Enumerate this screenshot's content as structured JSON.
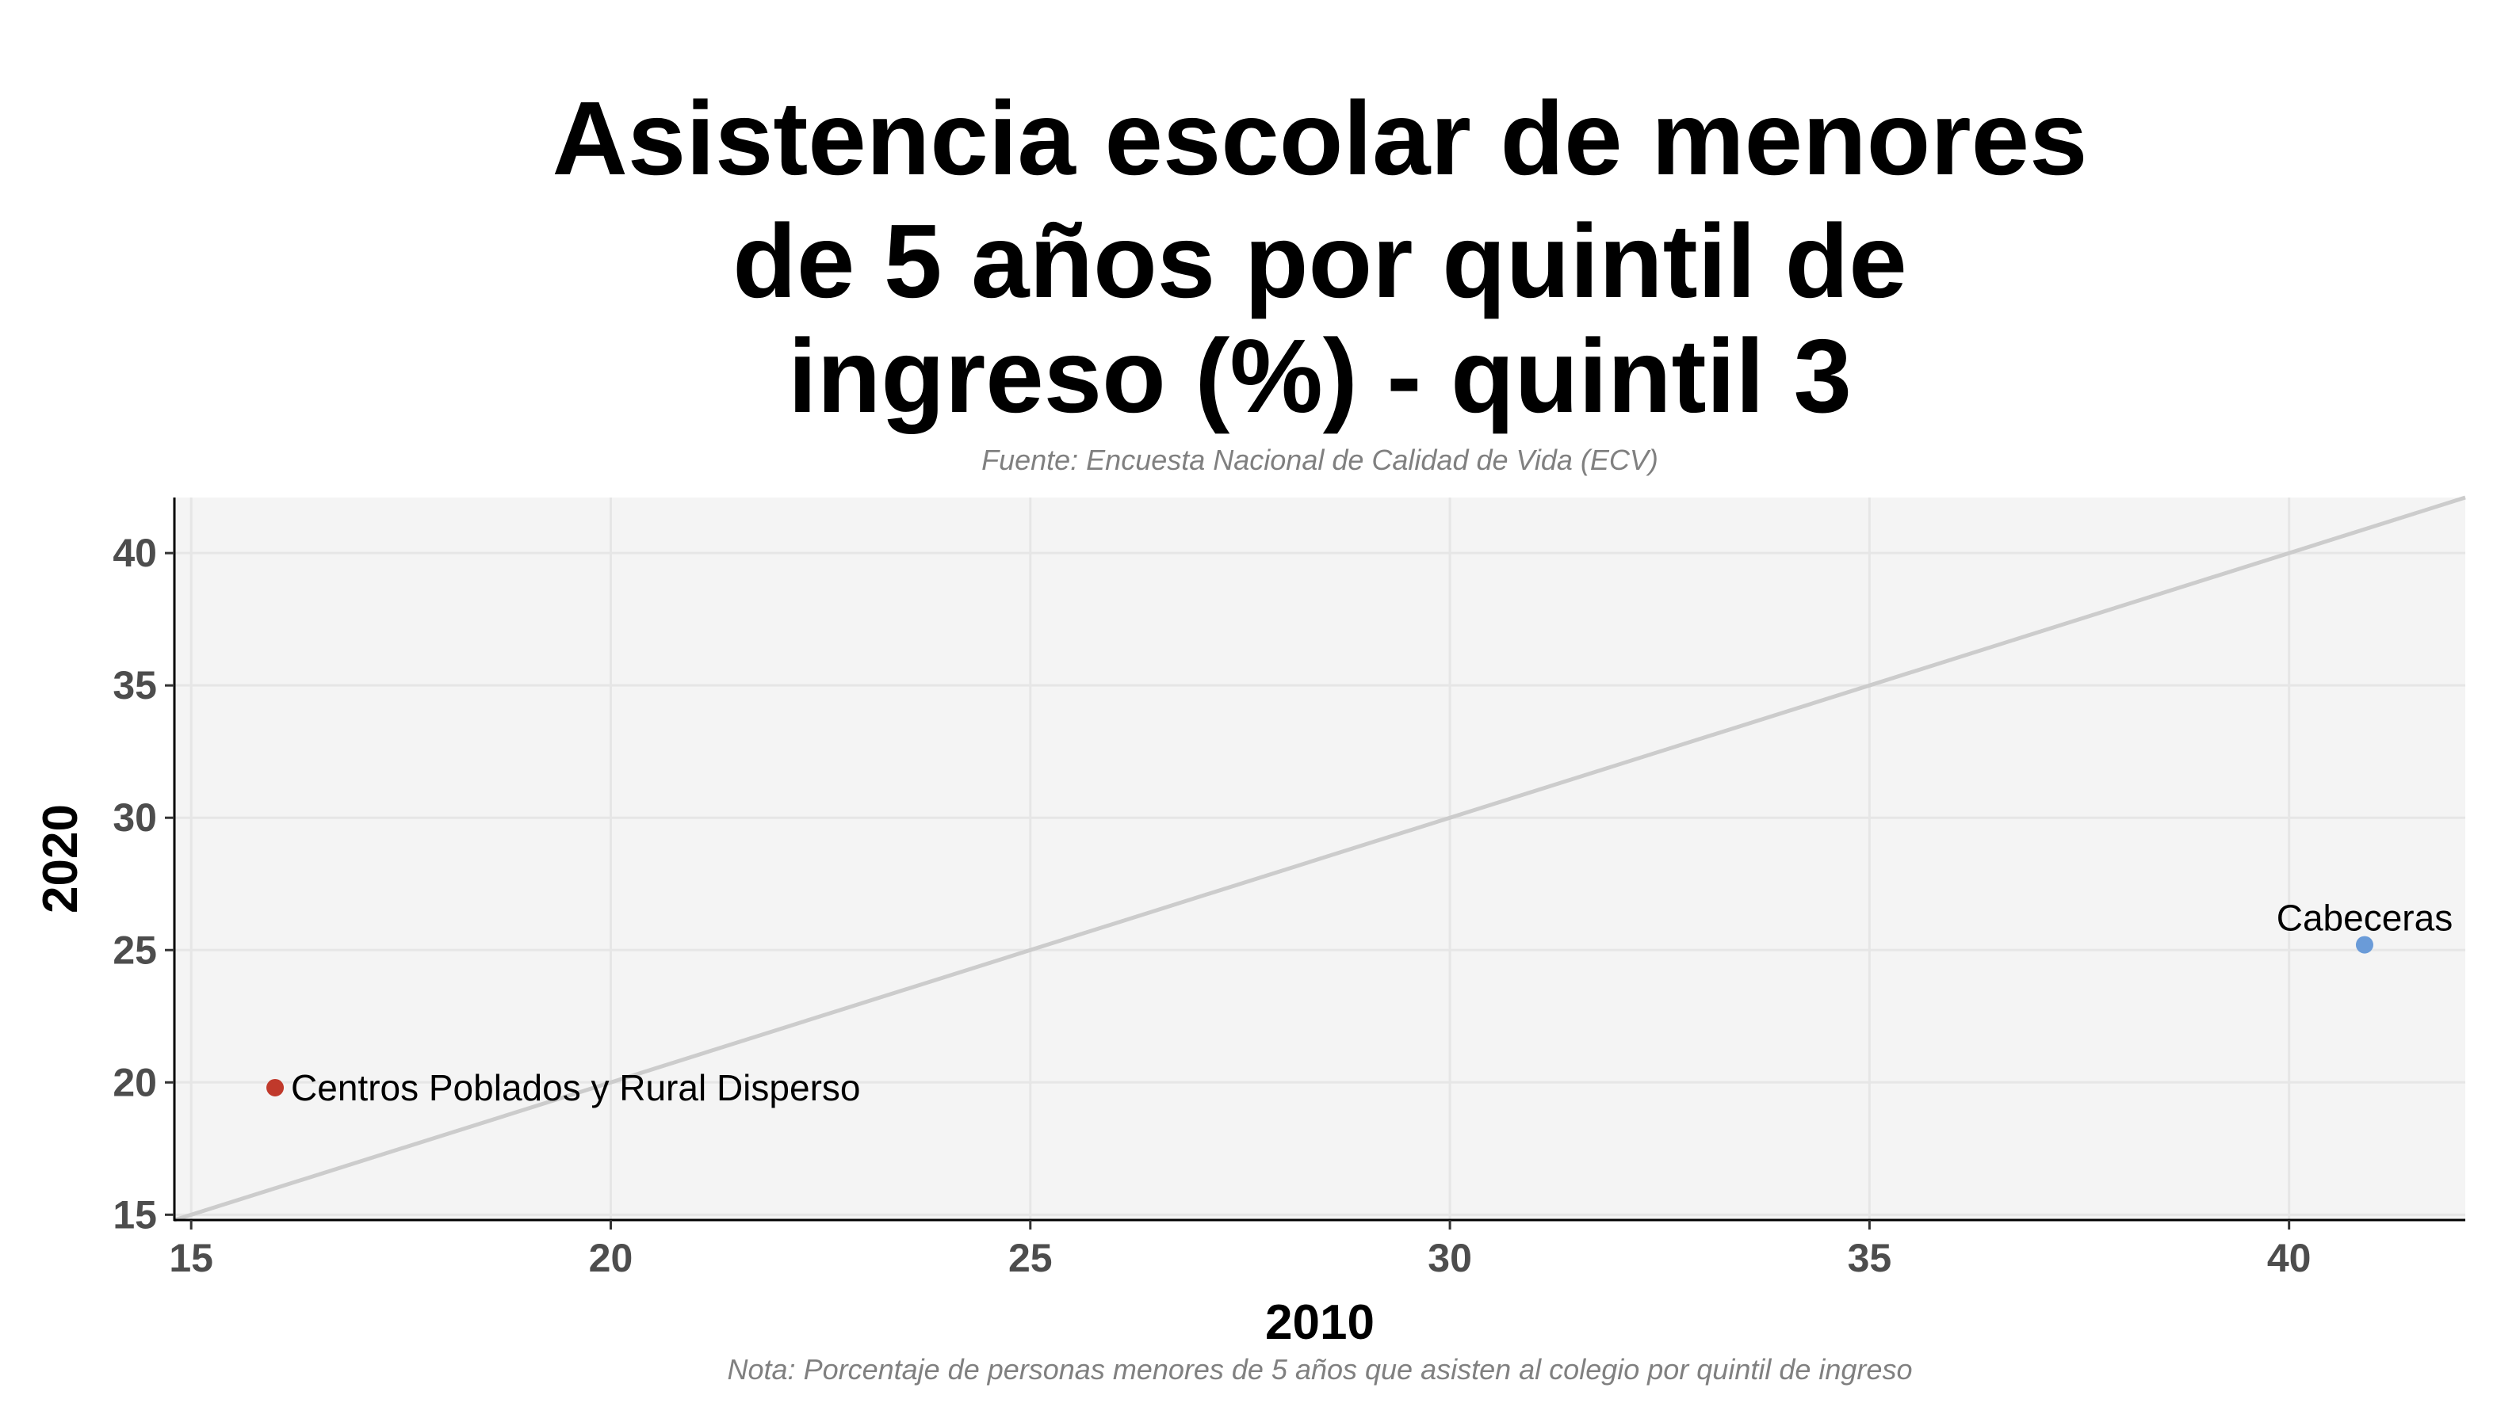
{
  "chart_data": {
    "type": "scatter",
    "title_lines": [
      "Asistencia escolar de menores",
      "de 5 años por quintil de",
      "ingreso (%) - quintil 3"
    ],
    "subtitle": "Fuente: Encuesta Nacional de Calidad de Vida (ECV)",
    "caption": "Nota: Porcentaje de personas menores de 5 años que asisten al colegio por quintil de ingreso",
    "xlabel": "2010",
    "ylabel": "2020",
    "xlim": [
      14.8,
      42.1
    ],
    "ylim": [
      14.8,
      42.1
    ],
    "x_ticks": [
      15,
      20,
      25,
      30,
      35,
      40
    ],
    "y_ticks": [
      15,
      20,
      25,
      30,
      35,
      40
    ],
    "reference_line": "y = x",
    "grid": true,
    "legend": "none",
    "points": [
      {
        "label": "Centros Poblados y Rural Disperso",
        "x": 16.0,
        "y": 19.8,
        "color": "#c0392b"
      },
      {
        "label": "Cabeceras",
        "x": 40.9,
        "y": 25.2,
        "color": "#6a9bd8"
      }
    ],
    "colors": {
      "panel_background": "#f4f4f4",
      "grid": "#e6e6e6",
      "reference_line": "#cccccc",
      "axis": "#000000"
    }
  }
}
